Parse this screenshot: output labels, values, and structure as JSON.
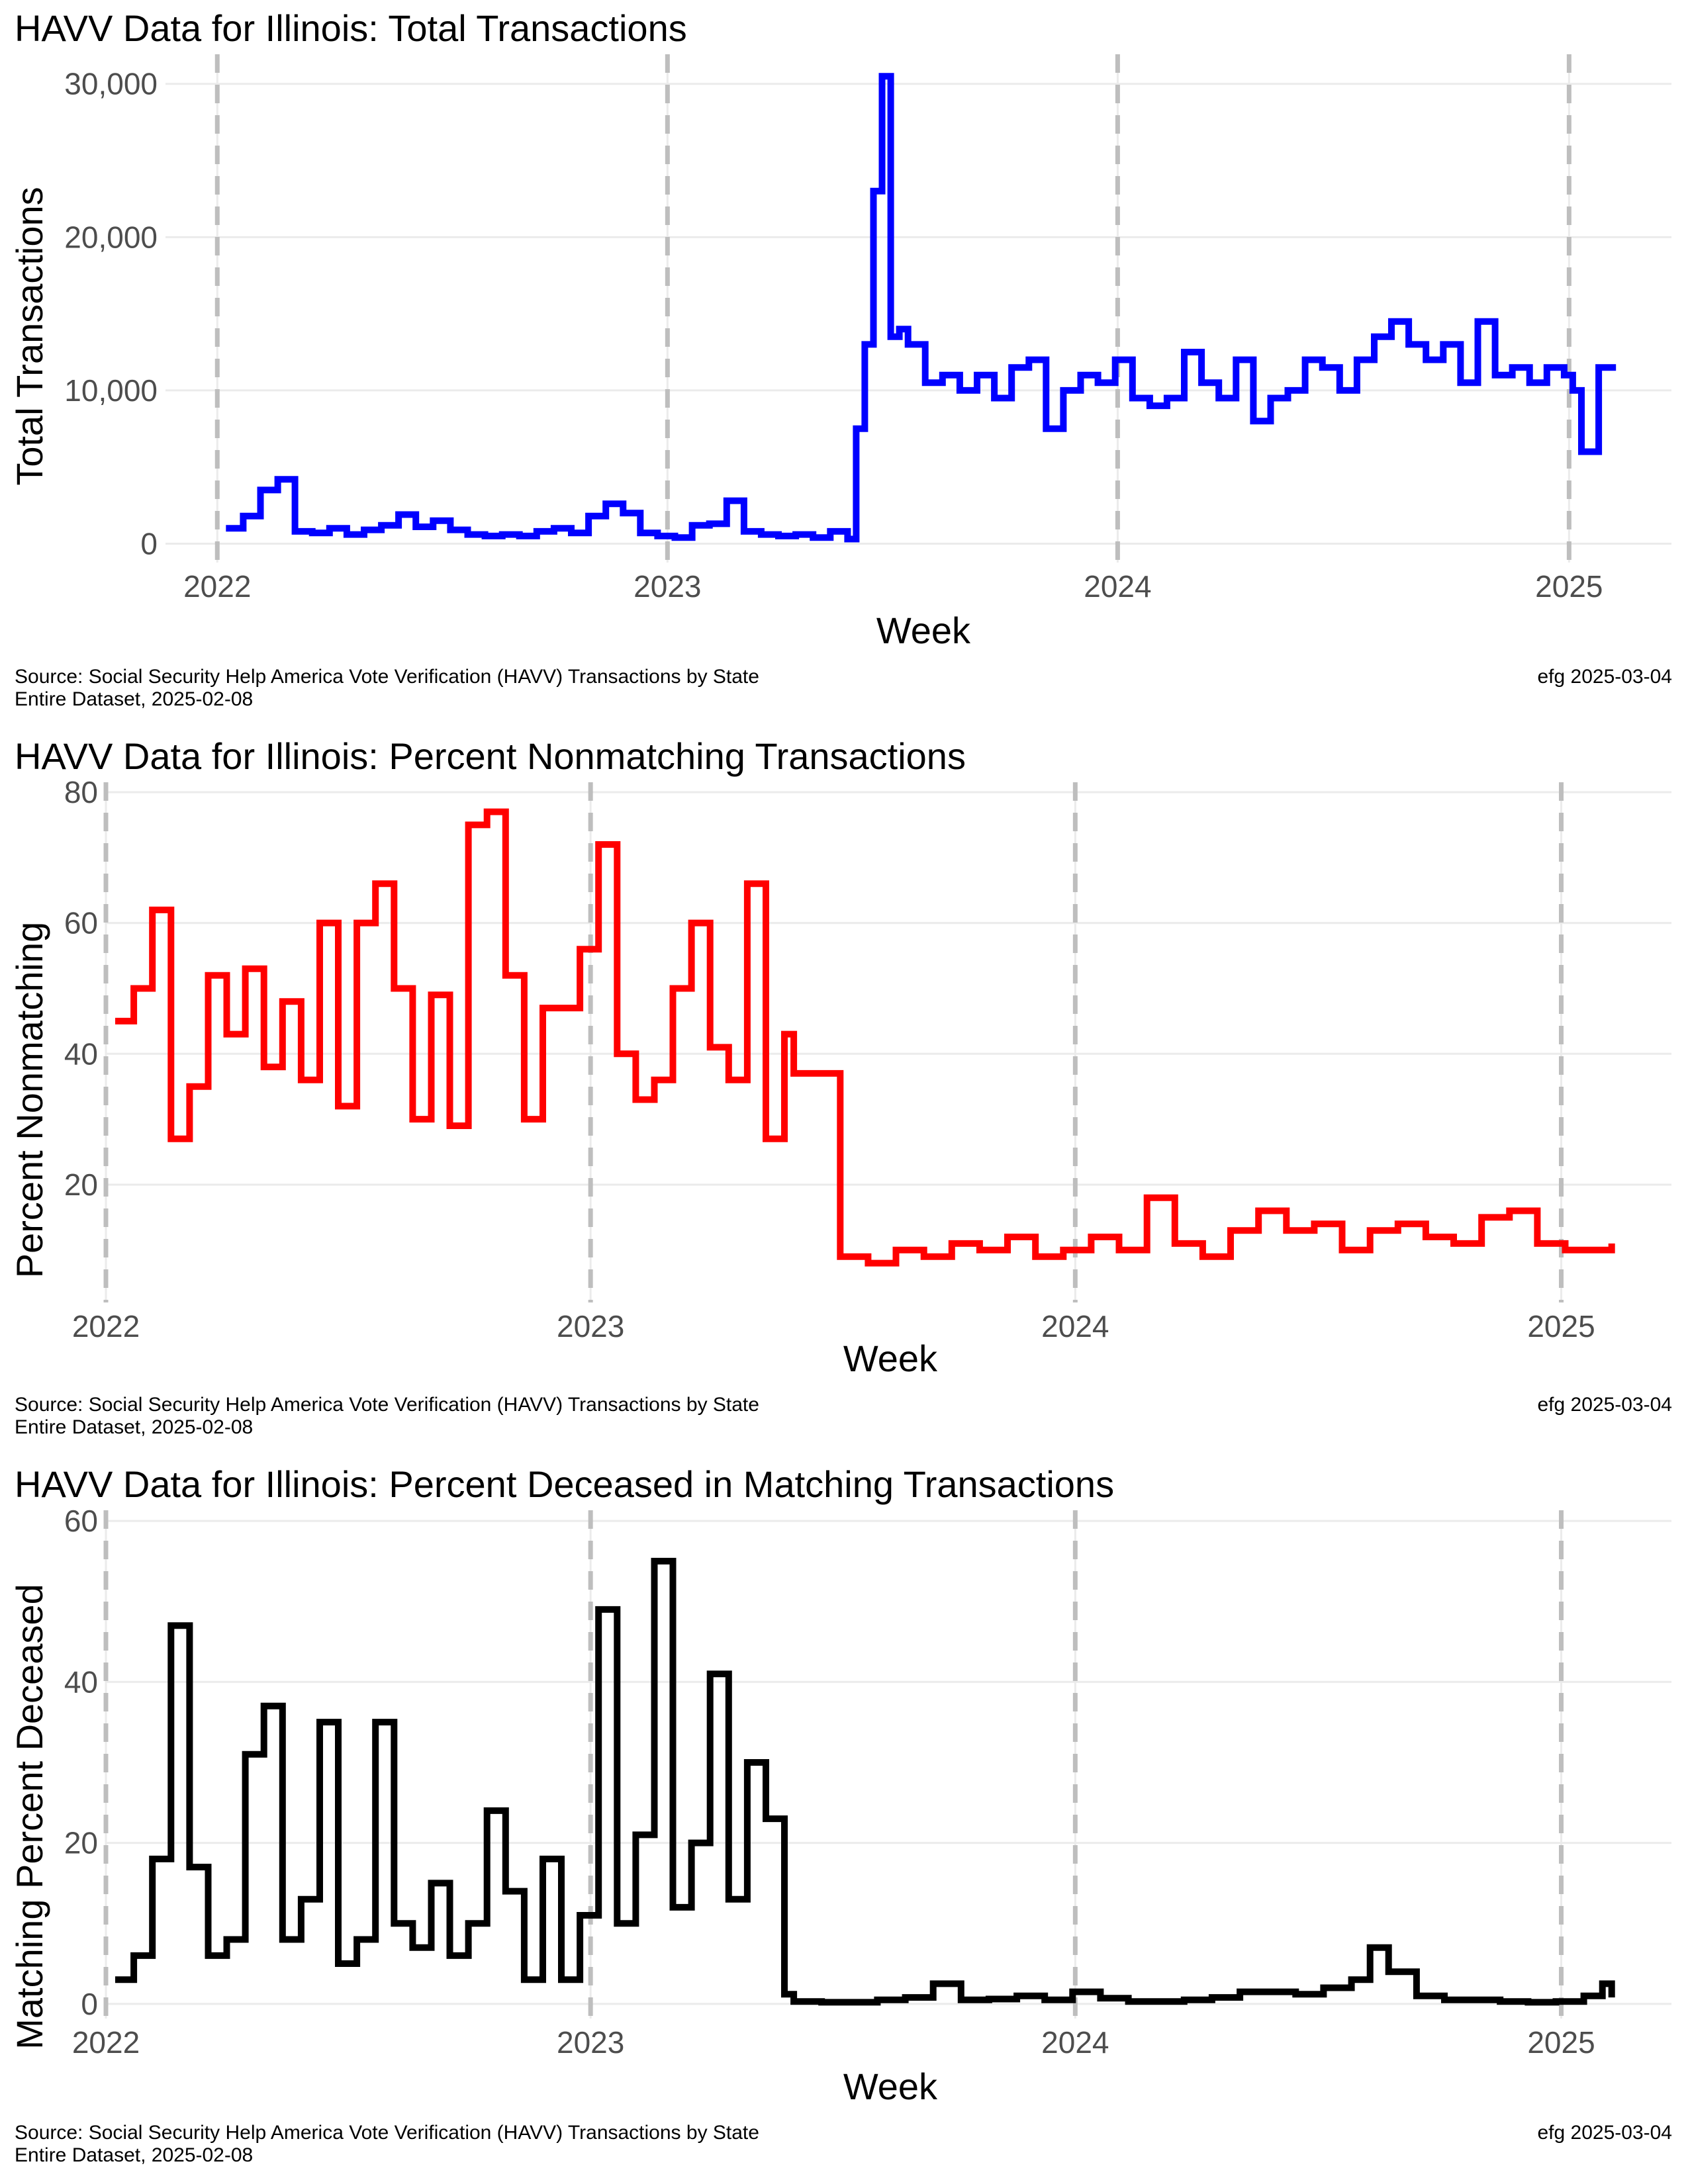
{
  "chart_data": [
    {
      "type": "line",
      "title": "HAVV Data for Illinois:  Total Transactions",
      "xlabel": "Week",
      "ylabel": "Total Transactions",
      "x_ticks": [
        "2022",
        "2023",
        "2024",
        "2025"
      ],
      "y_ticks": [
        "0",
        "10,000",
        "20,000",
        "30,000"
      ],
      "ylim": [
        -800,
        31500
      ],
      "xlim": [
        "2021-11-20",
        "2025-03-25"
      ],
      "color": "#0000ff",
      "step": true,
      "grid": true,
      "legend": "none",
      "caption_left": [
        "Source:  Social Security Help America Vote Verification (HAVV) Transactions by State",
        "Entire Dataset, 2025-02-08"
      ],
      "caption_right": "efg 2025-03-04",
      "series": [
        {
          "x": [
            "2022-01-08",
            "2022-01-22",
            "2022-02-05",
            "2022-02-19",
            "2022-03-05",
            "2022-03-19",
            "2022-04-02",
            "2022-04-16",
            "2022-04-30",
            "2022-05-14",
            "2022-05-28",
            "2022-06-11",
            "2022-06-25",
            "2022-07-09",
            "2022-07-23",
            "2022-08-06",
            "2022-08-20",
            "2022-09-03",
            "2022-09-17",
            "2022-10-01",
            "2022-10-15",
            "2022-10-29",
            "2022-11-12",
            "2022-11-26",
            "2022-12-10",
            "2022-12-24",
            "2023-01-07",
            "2023-01-21",
            "2023-02-04",
            "2023-02-18",
            "2023-03-04",
            "2023-03-18",
            "2023-04-01",
            "2023-04-15",
            "2023-04-29",
            "2023-05-13",
            "2023-05-27",
            "2023-06-03",
            "2023-06-10",
            "2023-06-17",
            "2023-06-24",
            "2023-07-01",
            "2023-07-08",
            "2023-07-15",
            "2023-07-29",
            "2023-08-12",
            "2023-08-26",
            "2023-09-09",
            "2023-09-23",
            "2023-10-07",
            "2023-10-21",
            "2023-11-04",
            "2023-11-18",
            "2023-12-02",
            "2023-12-16",
            "2023-12-30",
            "2024-01-13",
            "2024-01-27",
            "2024-02-10",
            "2024-02-24",
            "2024-03-09",
            "2024-03-23",
            "2024-04-06",
            "2024-04-20",
            "2024-05-04",
            "2024-05-18",
            "2024-06-01",
            "2024-06-15",
            "2024-06-29",
            "2024-07-13",
            "2024-07-27",
            "2024-08-10",
            "2024-08-24",
            "2024-09-07",
            "2024-09-21",
            "2024-10-05",
            "2024-10-19",
            "2024-11-02",
            "2024-11-16",
            "2024-11-30",
            "2024-12-14",
            "2024-12-28",
            "2025-01-04",
            "2025-01-11",
            "2025-01-25",
            "2025-02-08"
          ],
          "y": [
            1000,
            1800,
            3500,
            4200,
            800,
            700,
            1000,
            600,
            900,
            1200,
            1900,
            1100,
            1500,
            900,
            600,
            500,
            600,
            500,
            800,
            1000,
            700,
            1800,
            2600,
            2000,
            700,
            500,
            400,
            1200,
            1300,
            2800,
            800,
            600,
            500,
            600,
            400,
            800,
            300,
            7500,
            13000,
            23000,
            30500,
            13500,
            14000,
            13000,
            10500,
            11000,
            10000,
            11000,
            9500,
            11500,
            12000,
            7500,
            10000,
            11000,
            10500,
            12000,
            9500,
            9000,
            9500,
            12500,
            10500,
            9500,
            12000,
            8000,
            9500,
            10000,
            12000,
            11500,
            10000,
            12000,
            13500,
            14500,
            13000,
            12000,
            13000,
            10500,
            14500,
            11000,
            11500,
            10500,
            11500,
            11000,
            10000,
            6000,
            11500,
            11500
          ]
        }
      ]
    },
    {
      "type": "line",
      "title": "HAVV Data for Illinois:  Percent Nonmatching Transactions",
      "xlabel": "Week",
      "ylabel": "Percent Nonmatching",
      "x_ticks": [
        "2022",
        "2023",
        "2024",
        "2025"
      ],
      "y_ticks": [
        "20",
        "40",
        "60",
        "80"
      ],
      "ylim": [
        3,
        80.5
      ],
      "xlim": [
        "2022-01-01",
        "2025-03-25"
      ],
      "color": "#ff0000",
      "step": true,
      "grid": true,
      "legend": "none",
      "caption_left": [
        "Source:  Social Security Help America Vote Verification (HAVV) Transactions by State",
        "Entire Dataset, 2025-02-08"
      ],
      "caption_right": "efg 2025-03-04",
      "series": [
        {
          "x": [
            "2022-01-08",
            "2022-01-22",
            "2022-02-05",
            "2022-02-19",
            "2022-03-05",
            "2022-03-19",
            "2022-04-02",
            "2022-04-16",
            "2022-04-30",
            "2022-05-14",
            "2022-05-28",
            "2022-06-11",
            "2022-06-25",
            "2022-07-09",
            "2022-07-23",
            "2022-08-06",
            "2022-08-20",
            "2022-09-03",
            "2022-09-17",
            "2022-10-01",
            "2022-10-15",
            "2022-10-29",
            "2022-11-12",
            "2022-11-26",
            "2022-12-10",
            "2022-12-24",
            "2023-01-07",
            "2023-01-21",
            "2023-02-04",
            "2023-02-18",
            "2023-03-04",
            "2023-03-18",
            "2023-04-01",
            "2023-04-15",
            "2023-04-29",
            "2023-05-13",
            "2023-05-27",
            "2023-06-03",
            "2023-06-24",
            "2023-07-08",
            "2023-07-29",
            "2023-08-19",
            "2023-09-09",
            "2023-09-30",
            "2023-10-21",
            "2023-11-11",
            "2023-12-02",
            "2023-12-23",
            "2024-01-13",
            "2024-02-03",
            "2024-02-24",
            "2024-03-16",
            "2024-04-06",
            "2024-04-27",
            "2024-05-18",
            "2024-06-08",
            "2024-06-29",
            "2024-07-20",
            "2024-08-10",
            "2024-08-31",
            "2024-09-21",
            "2024-10-12",
            "2024-11-02",
            "2024-11-23",
            "2024-12-14",
            "2025-01-04",
            "2025-01-25",
            "2025-02-08"
          ],
          "y": [
            45,
            50,
            62,
            27,
            35,
            52,
            43,
            53,
            38,
            48,
            36,
            60,
            32,
            60,
            66,
            50,
            30,
            49,
            29,
            75,
            77,
            52,
            30,
            47,
            47,
            56,
            72,
            40,
            33,
            36,
            50,
            60,
            41,
            36,
            66,
            27,
            43,
            37,
            37,
            9,
            8,
            10,
            9,
            11,
            10,
            12,
            9,
            10,
            12,
            10,
            18,
            11,
            9,
            13,
            16,
            13,
            14,
            10,
            13,
            14,
            12,
            11,
            15,
            16,
            11,
            10,
            10,
            11
          ]
        }
      ]
    },
    {
      "type": "line",
      "title": "HAVV Data for Illinois:  Percent Deceased in Matching Transactions",
      "xlabel": "Week",
      "ylabel": "Matching Percent Deceased",
      "x_ticks": [
        "2022",
        "2023",
        "2024",
        "2025"
      ],
      "y_ticks": [
        "0",
        "20",
        "40",
        "60"
      ],
      "ylim": [
        -1,
        60.5
      ],
      "xlim": [
        "2022-01-01",
        "2025-03-25"
      ],
      "color": "#000000",
      "step": true,
      "grid": true,
      "legend": "none",
      "caption_left": [
        "Source:  Social Security Help America Vote Verification (HAVV) Transactions by State",
        "Entire Dataset, 2025-02-08"
      ],
      "caption_right": "efg 2025-03-04",
      "series": [
        {
          "x": [
            "2022-01-08",
            "2022-01-22",
            "2022-02-05",
            "2022-02-19",
            "2022-03-05",
            "2022-03-19",
            "2022-04-02",
            "2022-04-16",
            "2022-04-30",
            "2022-05-14",
            "2022-05-28",
            "2022-06-11",
            "2022-06-25",
            "2022-07-09",
            "2022-07-23",
            "2022-08-06",
            "2022-08-20",
            "2022-09-03",
            "2022-09-17",
            "2022-10-01",
            "2022-10-15",
            "2022-10-29",
            "2022-11-12",
            "2022-11-26",
            "2022-12-10",
            "2022-12-24",
            "2023-01-07",
            "2023-01-21",
            "2023-02-04",
            "2023-02-18",
            "2023-03-04",
            "2023-03-18",
            "2023-04-01",
            "2023-04-15",
            "2023-04-29",
            "2023-05-13",
            "2023-05-27",
            "2023-06-03",
            "2023-06-24",
            "2023-07-15",
            "2023-08-05",
            "2023-08-26",
            "2023-09-16",
            "2023-10-07",
            "2023-10-28",
            "2023-11-18",
            "2023-12-09",
            "2023-12-30",
            "2024-01-20",
            "2024-02-10",
            "2024-03-02",
            "2024-03-23",
            "2024-04-13",
            "2024-05-04",
            "2024-05-25",
            "2024-06-15",
            "2024-07-06",
            "2024-07-27",
            "2024-08-10",
            "2024-08-24",
            "2024-09-14",
            "2024-10-05",
            "2024-10-26",
            "2024-11-16",
            "2024-12-07",
            "2024-12-28",
            "2025-01-18",
            "2025-02-01",
            "2025-02-08"
          ],
          "y": [
            3,
            6,
            18,
            47,
            17,
            6,
            8,
            31,
            37,
            8,
            13,
            35,
            5,
            8,
            35,
            10,
            7,
            15,
            6,
            10,
            24,
            14,
            3,
            18,
            3,
            11,
            49,
            10,
            21,
            55,
            12,
            20,
            41,
            13,
            30,
            23,
            1.2,
            0.3,
            0.2,
            0.2,
            0.5,
            0.8,
            2.5,
            0.5,
            0.6,
            1,
            0.5,
            1.5,
            0.7,
            0.3,
            0.3,
            0.5,
            0.8,
            1.5,
            1.5,
            1.2,
            2,
            3,
            7,
            4,
            1,
            0.5,
            0.5,
            0.3,
            0.2,
            0.3,
            1,
            2.5,
            0.8
          ]
        }
      ]
    }
  ]
}
